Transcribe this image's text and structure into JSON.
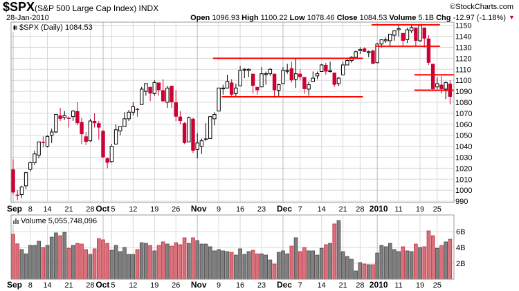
{
  "header": {
    "symbol": "$SPX",
    "name": "(S&P 500 Large Cap Index) INDX",
    "copyright": "©StockCharts.com",
    "date": "28-Jan-2010",
    "open_label": "Open",
    "open": "1096.93",
    "high_label": "High",
    "high": "1100.22",
    "low_label": "Low",
    "low": "1078.46",
    "close_label": "Close",
    "close": "1084.53",
    "volume_label": "Volume",
    "volume": "5.1B",
    "chg_label": "Chg",
    "chg": "-12.97 (-1.18%)",
    "chg_arrow": "▼"
  },
  "price_panel": {
    "legend": "$SPX (Daily) 1084.53",
    "y_ticks": [
      1150,
      1140,
      1130,
      1120,
      1110,
      1100,
      1090,
      1080,
      1070,
      1060,
      1050,
      1040,
      1030,
      1020,
      1010,
      1000,
      990
    ],
    "ylim": [
      990,
      1150
    ]
  },
  "volume_panel": {
    "legend": "Volume 5,055,748,096",
    "y_ticks": [
      {
        "v": 6,
        "label": "6B"
      },
      {
        "v": 4,
        "label": "4B"
      },
      {
        "v": 2,
        "label": "2B"
      }
    ]
  },
  "x_ticks": [
    {
      "i": 0,
      "label": "Sep",
      "major": true
    },
    {
      "i": 4,
      "label": "8"
    },
    {
      "i": 8,
      "label": "14"
    },
    {
      "i": 13,
      "label": "21"
    },
    {
      "i": 18,
      "label": "28"
    },
    {
      "i": 21,
      "label": "Oct",
      "major": true
    },
    {
      "i": 23,
      "label": "5"
    },
    {
      "i": 28,
      "label": "12"
    },
    {
      "i": 33,
      "label": "19"
    },
    {
      "i": 38,
      "label": "26"
    },
    {
      "i": 43,
      "label": "Nov",
      "major": true
    },
    {
      "i": 48,
      "label": "9"
    },
    {
      "i": 53,
      "label": "16"
    },
    {
      "i": 58,
      "label": "23"
    },
    {
      "i": 63,
      "label": "Dec",
      "major": true
    },
    {
      "i": 67,
      "label": "7"
    },
    {
      "i": 72,
      "label": "14"
    },
    {
      "i": 77,
      "label": "21"
    },
    {
      "i": 81,
      "label": "28"
    },
    {
      "i": 85,
      "label": "2010",
      "major": true
    },
    {
      "i": 90,
      "label": "11"
    },
    {
      "i": 95,
      "label": "19"
    },
    {
      "i": 99,
      "label": "25"
    }
  ],
  "colors": {
    "up": "#000000",
    "down": "#cc0033",
    "vol_up": "#808080",
    "vol_down": "#d9707a",
    "annotation": "#ff0000",
    "grid": "#d8d8d8"
  },
  "annotations": [
    {
      "price": 1120,
      "from": 47,
      "to": 81
    },
    {
      "price": 1085,
      "from": 49,
      "to": 81
    },
    {
      "price": 1150.5,
      "from": 84,
      "to": 99
    },
    {
      "price": 1131,
      "from": 85,
      "to": 99
    },
    {
      "price": 1105,
      "from": 94,
      "to": 103
    },
    {
      "price": 1091,
      "from": 94,
      "to": 103
    }
  ],
  "chart_data": {
    "type": "candlestick",
    "title": "$SPX (Daily)",
    "ohlc": [
      [
        1019,
        1028,
        996,
        998
      ],
      [
        996,
        1000,
        991,
        995
      ],
      [
        996,
        1004,
        993,
        1003
      ],
      [
        1004,
        1017,
        1001,
        1016
      ],
      [
        1019,
        1026,
        1017,
        1025
      ],
      [
        1025,
        1036,
        1023,
        1033
      ],
      [
        1032,
        1044,
        1029,
        1044
      ],
      [
        1044,
        1049,
        1039,
        1043
      ],
      [
        1040,
        1050,
        1039,
        1049
      ],
      [
        1050,
        1056,
        1043,
        1053
      ],
      [
        1053,
        1068,
        1052,
        1069
      ],
      [
        1068,
        1075,
        1063,
        1065
      ],
      [
        1066,
        1072,
        1064,
        1068
      ],
      [
        1066,
        1067,
        1057,
        1065
      ],
      [
        1067,
        1073,
        1063,
        1072
      ],
      [
        1072,
        1080,
        1059,
        1061
      ],
      [
        1062,
        1066,
        1042,
        1051
      ],
      [
        1049,
        1053,
        1041,
        1044
      ],
      [
        1045,
        1065,
        1044,
        1063
      ],
      [
        1063,
        1070,
        1057,
        1061
      ],
      [
        1061,
        1063,
        1046,
        1057
      ],
      [
        1054,
        1055,
        1029,
        1030
      ],
      [
        1029,
        1030,
        1020,
        1025
      ],
      [
        1026,
        1042,
        1025,
        1040
      ],
      [
        1042,
        1060,
        1042,
        1055
      ],
      [
        1054,
        1058,
        1050,
        1058
      ],
      [
        1058,
        1071,
        1058,
        1065
      ],
      [
        1065,
        1073,
        1063,
        1071
      ],
      [
        1071,
        1080,
        1068,
        1076
      ],
      [
        1074,
        1075,
        1067,
        1073
      ],
      [
        1078,
        1094,
        1078,
        1092
      ],
      [
        1090,
        1097,
        1086,
        1097
      ],
      [
        1094,
        1094,
        1081,
        1088
      ],
      [
        1088,
        1100,
        1086,
        1098
      ],
      [
        1098,
        1098,
        1086,
        1091
      ],
      [
        1091,
        1101,
        1080,
        1081
      ],
      [
        1080,
        1095,
        1075,
        1093
      ],
      [
        1095,
        1095,
        1075,
        1080
      ],
      [
        1080,
        1091,
        1063,
        1067
      ],
      [
        1067,
        1072,
        1060,
        1063
      ],
      [
        1061,
        1062,
        1042,
        1043
      ],
      [
        1044,
        1067,
        1044,
        1066
      ],
      [
        1065,
        1066,
        1034,
        1036
      ],
      [
        1037,
        1052,
        1029,
        1043
      ],
      [
        1040,
        1047,
        1033,
        1045
      ],
      [
        1047,
        1061,
        1045,
        1046
      ],
      [
        1047,
        1067,
        1047,
        1067
      ],
      [
        1065,
        1071,
        1059,
        1069
      ],
      [
        1072,
        1093,
        1072,
        1093
      ],
      [
        1093,
        1096,
        1087,
        1093
      ],
      [
        1093,
        1105,
        1093,
        1099
      ],
      [
        1098,
        1101,
        1085,
        1087
      ],
      [
        1088,
        1097,
        1085,
        1093
      ],
      [
        1095,
        1113,
        1095,
        1109
      ],
      [
        1110,
        1111,
        1102,
        1110
      ],
      [
        1109,
        1111,
        1103,
        1110
      ],
      [
        1106,
        1106,
        1088,
        1095
      ],
      [
        1094,
        1094,
        1087,
        1091
      ],
      [
        1094,
        1112,
        1094,
        1106
      ],
      [
        1106,
        1108,
        1096,
        1106
      ],
      [
        1106,
        1111,
        1104,
        1110
      ],
      [
        1106,
        1106,
        1084,
        1091
      ],
      [
        1091,
        1097,
        1085,
        1096
      ],
      [
        1097,
        1112,
        1097,
        1109
      ],
      [
        1109,
        1115,
        1106,
        1109
      ],
      [
        1111,
        1117,
        1098,
        1100
      ],
      [
        1101,
        1120,
        1093,
        1106
      ],
      [
        1106,
        1110,
        1100,
        1103
      ],
      [
        1103,
        1103,
        1088,
        1092
      ],
      [
        1092,
        1099,
        1086,
        1096
      ],
      [
        1099,
        1108,
        1099,
        1102
      ],
      [
        1104,
        1108,
        1101,
        1106
      ],
      [
        1108,
        1115,
        1108,
        1114
      ],
      [
        1114,
        1116,
        1105,
        1108
      ],
      [
        1108,
        1117,
        1107,
        1109
      ],
      [
        1107,
        1107,
        1094,
        1096
      ],
      [
        1097,
        1103,
        1095,
        1102
      ],
      [
        1105,
        1117,
        1105,
        1114
      ],
      [
        1114,
        1120,
        1114,
        1118
      ],
      [
        1118,
        1122,
        1116,
        1121
      ],
      [
        1121,
        1127,
        1121,
        1126
      ],
      [
        1127,
        1130,
        1124,
        1128
      ],
      [
        1129,
        1130,
        1126,
        1126
      ],
      [
        1125,
        1127,
        1121,
        1126
      ],
      [
        1127,
        1128,
        1115,
        1115
      ],
      [
        1116,
        1134,
        1116,
        1133
      ],
      [
        1133,
        1137,
        1130,
        1137
      ],
      [
        1136,
        1139,
        1134,
        1137
      ],
      [
        1136,
        1142,
        1131,
        1142
      ],
      [
        1141,
        1145,
        1136,
        1145
      ],
      [
        1146,
        1150,
        1140,
        1147
      ],
      [
        1143,
        1143,
        1131,
        1136
      ],
      [
        1137,
        1148,
        1134,
        1146
      ],
      [
        1145,
        1150,
        1143,
        1148
      ],
      [
        1148,
        1148,
        1131,
        1136
      ],
      [
        1136,
        1150,
        1135,
        1150
      ],
      [
        1148,
        1148,
        1130,
        1138
      ],
      [
        1138,
        1141,
        1114,
        1116
      ],
      [
        1115,
        1115,
        1090,
        1092
      ],
      [
        1094,
        1103,
        1092,
        1097
      ],
      [
        1096,
        1104,
        1088,
        1092
      ],
      [
        1092,
        1099,
        1083,
        1098
      ],
      [
        1097,
        1100,
        1078,
        1085
      ]
    ],
    "volume_billions": [
      5.65,
      4.46,
      3.74,
      3.2,
      4.26,
      4.26,
      4.78,
      4.0,
      4.26,
      5.3,
      5.83,
      5.48,
      5.9,
      3.9,
      4.26,
      4.52,
      4.43,
      3.74,
      3.13,
      3.83,
      5.13,
      4.96,
      4.52,
      3.65,
      4.26,
      3.48,
      4.0,
      3.13,
      3.13,
      3.74,
      4.6,
      4.52,
      4.26,
      3.57,
      4.26,
      4.7,
      4.43,
      4.17,
      4.6,
      4.35,
      5.22,
      4.52,
      5.22,
      4.87,
      4.43,
      4.43,
      4.09,
      3.57,
      3.74,
      3.57,
      3.48,
      3.39,
      3.04,
      3.83,
      3.13,
      3.48,
      3.65,
      3.2,
      3.2,
      3.04,
      2.43,
      1.91,
      3.39,
      3.57,
      3.2,
      4.17,
      5.22,
      3.48,
      4.0,
      3.57,
      3.57,
      3.04,
      3.9,
      4.35,
      4.52,
      6.96,
      7.39,
      3.48,
      2.87,
      2.52,
      1.04,
      2.09,
      1.91,
      1.83,
      1.83,
      3.3,
      4.26,
      4.09,
      4.52,
      3.74,
      3.48,
      4.09,
      3.57,
      3.48,
      4.43,
      4.0,
      4.09,
      6.09,
      5.48,
      3.9,
      4.26,
      4.7,
      5.04
    ],
    "ylim": [
      990,
      1150
    ],
    "xlabel": "",
    "ylabel": ""
  }
}
